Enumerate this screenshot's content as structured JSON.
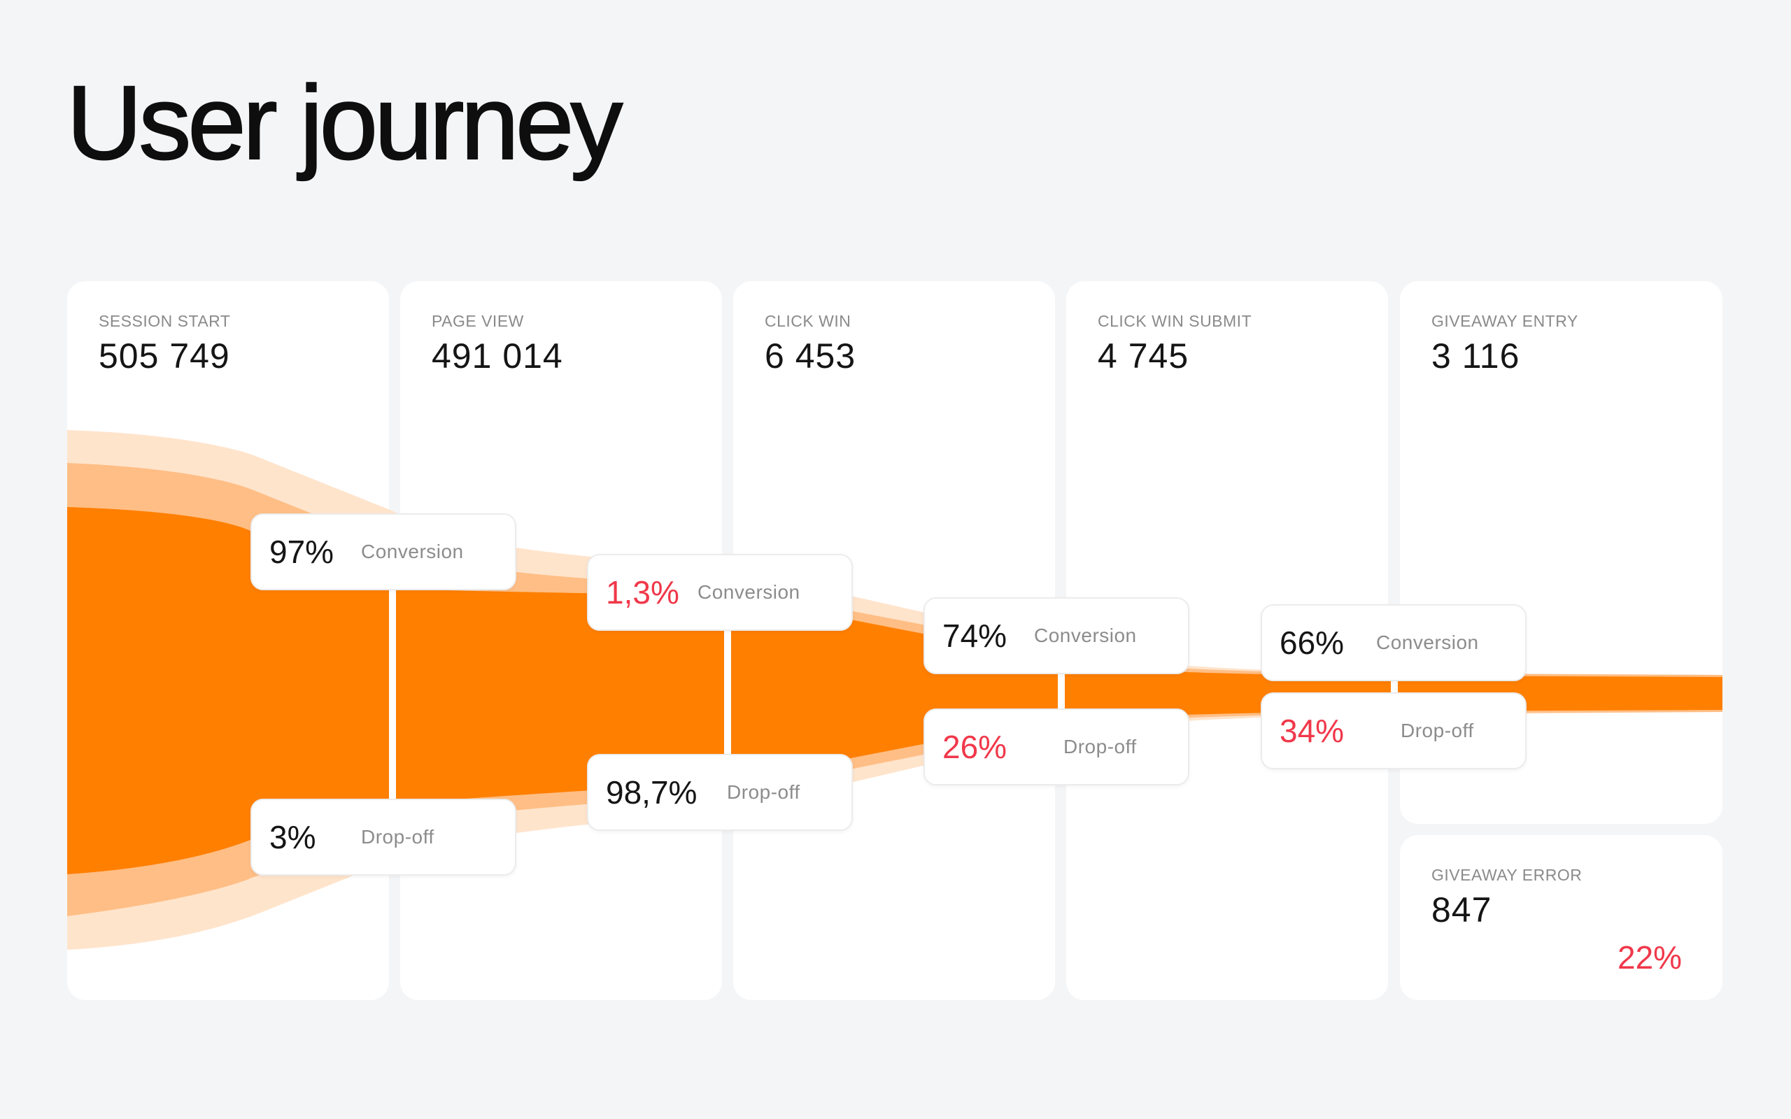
{
  "title": "User journey",
  "colors": {
    "flow_main": "#ff7f00",
    "flow_mid": "#ffbe85",
    "flow_light": "#ffe4cc",
    "negative": "#f0384a",
    "panel": "#ffffff",
    "background": "#f4f5f7"
  },
  "chart_data": {
    "type": "funnel",
    "stages": [
      {
        "name": "SESSION START",
        "value": "505 749"
      },
      {
        "name": "PAGE VIEW",
        "value": "491 014"
      },
      {
        "name": "CLICK WIN",
        "value": "6 453"
      },
      {
        "name": "CLICK WIN SUBMIT",
        "value": "4 745"
      },
      {
        "name": "GIVEAWAY ENTRY",
        "value": "3 116"
      }
    ],
    "error_stage": {
      "name": "GIVEAWAY ERROR",
      "value": "847",
      "percent": "22%"
    },
    "transitions": [
      {
        "conversion": "97%",
        "conversion_label": "Conversion",
        "dropoff": "3%",
        "dropoff_label": "Drop-off",
        "conversion_negative": false,
        "dropoff_negative": false
      },
      {
        "conversion": "1,3%",
        "conversion_label": "Conversion",
        "dropoff": "98,7%",
        "dropoff_label": "Drop-off",
        "conversion_negative": true,
        "dropoff_negative": false
      },
      {
        "conversion": "74%",
        "conversion_label": "Conversion",
        "dropoff": "26%",
        "dropoff_label": "Drop-off",
        "conversion_negative": false,
        "dropoff_negative": true
      },
      {
        "conversion": "66%",
        "conversion_label": "Conversion",
        "dropoff": "34%",
        "dropoff_label": "Drop-off",
        "conversion_negative": false,
        "dropoff_negative": true
      }
    ]
  }
}
